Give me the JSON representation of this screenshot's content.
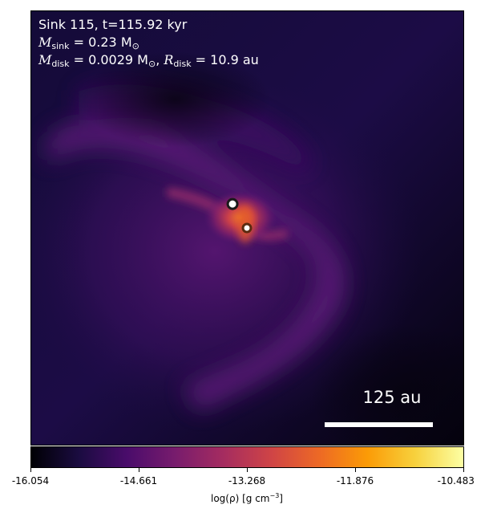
{
  "title": {
    "line1": "Sink 115, t=115.92 kyr",
    "m_sink_prefix": "M",
    "m_sink_sub": "sink",
    "m_sink_value": " = 0.23 M",
    "m_sink_unit_sub": "⊙",
    "m_disk_prefix": "M",
    "m_disk_sub": "disk",
    "m_disk_value": " = 0.0029 M",
    "m_disk_unit_sub": "⊙",
    "r_disk_sep": ", ",
    "r_disk_prefix": "R",
    "r_disk_sub": "disk",
    "r_disk_value": " = 10.9 au"
  },
  "scalebar": {
    "label": "125 au"
  },
  "colorbar": {
    "ticks": [
      "-16.054",
      "-14.661",
      "-13.268",
      "-11.876",
      "-10.483"
    ],
    "label": "log(ρ) [g cm",
    "label_sup": "−3",
    "label_end": "]",
    "colormap": "inferno",
    "stops": [
      "#000004",
      "#1b0c41",
      "#4a0c6b",
      "#781c6d",
      "#a52c60",
      "#cf4446",
      "#ed6925",
      "#fb9b06",
      "#f7d13d",
      "#fcffa4"
    ]
  },
  "colors": {
    "background_dark": "#0b0624",
    "filament": "#5a1a7a",
    "core": "#e0502a"
  }
}
